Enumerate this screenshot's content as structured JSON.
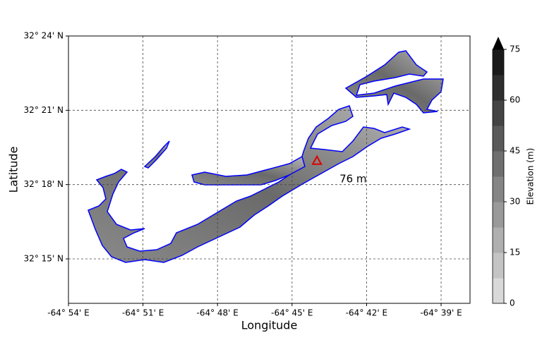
{
  "chart_data": {
    "type": "map",
    "xlabel": "Longitude",
    "ylabel": "Latitude",
    "xlim": [
      -64.9,
      -64.6306
    ],
    "ylim": [
      32.2201,
      32.4
    ],
    "xticks": [
      {
        "value": -64.9,
        "label": "-64° 54' E"
      },
      {
        "value": -64.85,
        "label": "-64° 51' E"
      },
      {
        "value": -64.8,
        "label": "-64° 48' E"
      },
      {
        "value": -64.75,
        "label": "-64° 45' E"
      },
      {
        "value": -64.7,
        "label": "-64° 42' E"
      },
      {
        "value": -64.65,
        "label": "-64° 39' E"
      }
    ],
    "yticks": [
      {
        "value": 32.25,
        "label": "32° 15' N"
      },
      {
        "value": 32.3,
        "label": "32° 18' N"
      },
      {
        "value": 32.35,
        "label": "32° 21' N"
      },
      {
        "value": 32.4,
        "label": "32° 24' N"
      }
    ],
    "grid": true,
    "peak": {
      "lon": -64.7333,
      "lat": 32.3161,
      "label": "76 m",
      "color": "#e00000"
    },
    "coastline_color": "#0000ff",
    "colorbar": {
      "label": "Elevation (m)",
      "lim": [
        0,
        75
      ],
      "ticks": [
        0,
        15,
        30,
        45,
        60,
        75
      ],
      "colors": [
        "#d9d9d9",
        "#c4c4c4",
        "#afafaf",
        "#999999",
        "#858585",
        "#6f6f6f",
        "#5a5a5a",
        "#444444",
        "#2e2e2e",
        "#1a1a1a"
      ],
      "extend_color": "#000000"
    }
  }
}
